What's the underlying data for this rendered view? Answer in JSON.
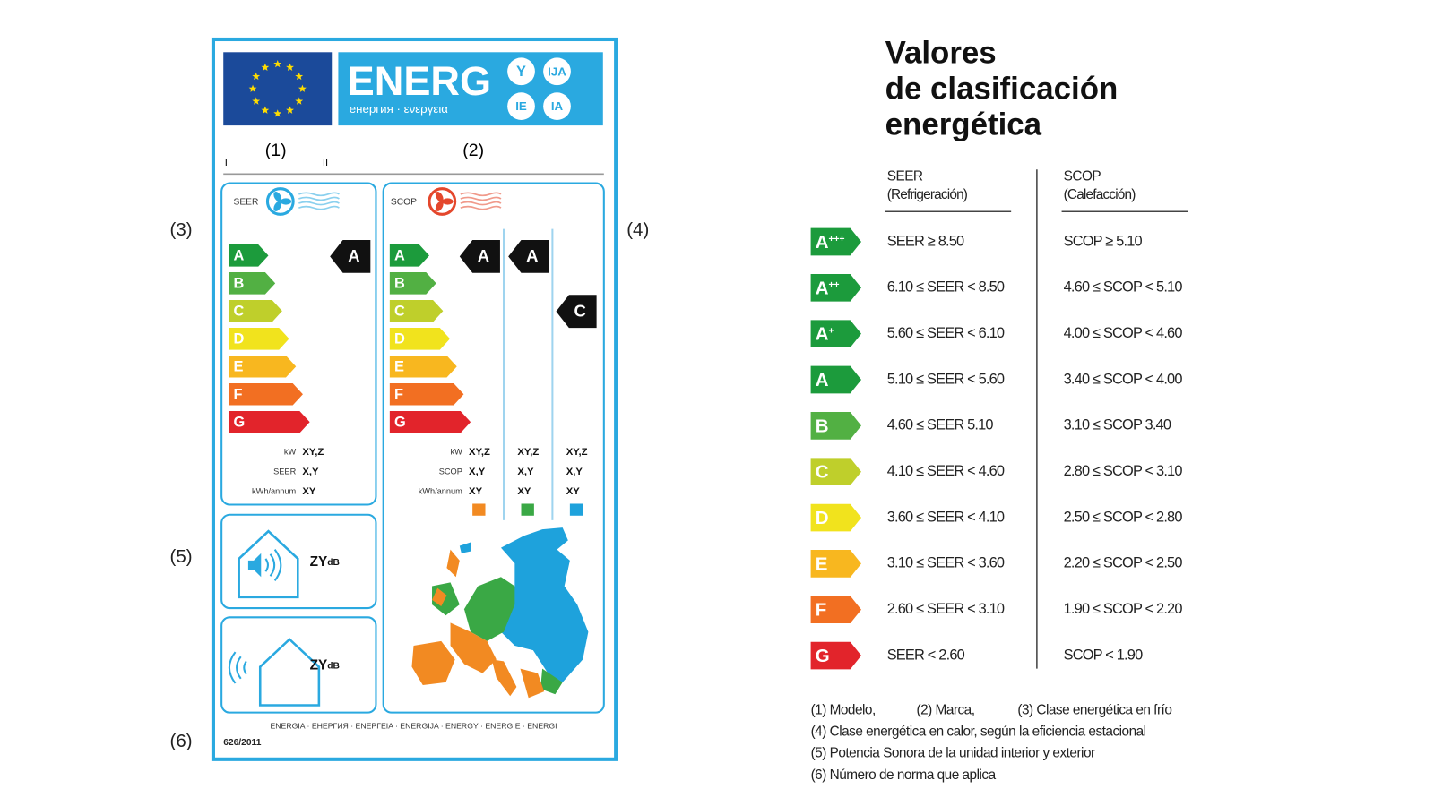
{
  "label": {
    "energy_word": "ENERG",
    "suffixes": [
      "Y",
      "IJA",
      "IE",
      "IA"
    ],
    "subtitle": "енергия · ενεργεια",
    "markers": [
      "(1)",
      "(2)"
    ],
    "roman": [
      "I",
      "II"
    ],
    "side_markers": [
      "(3)",
      "(4)",
      "(5)",
      "(6)"
    ],
    "cooling": {
      "title": "SEER",
      "classes": [
        "A",
        "B",
        "C",
        "D",
        "E",
        "F",
        "G"
      ],
      "rating": "A",
      "rows": [
        {
          "unit": "kW",
          "value": "XY,Z"
        },
        {
          "unit": "SEER",
          "value": "X,Y"
        },
        {
          "unit": "kWh/annum",
          "value": "XY"
        }
      ]
    },
    "heating": {
      "title": "SCOP",
      "classes": [
        "A",
        "B",
        "C",
        "D",
        "E",
        "F",
        "G"
      ],
      "ratings": [
        "A",
        "A",
        "C"
      ],
      "rows": [
        {
          "unit": "kW",
          "values": [
            "XY,Z",
            "XY,Z",
            "XY,Z"
          ]
        },
        {
          "unit": "SCOP",
          "values": [
            "X,Y",
            "X,Y",
            "X,Y"
          ]
        },
        {
          "unit": "kWh/annum",
          "values": [
            "XY",
            "XY",
            "XY"
          ]
        }
      ]
    },
    "noise": [
      {
        "value": "ZY",
        "unit": "dB"
      },
      {
        "value": "ZY",
        "unit": "dB"
      }
    ],
    "footer": "ENERGIA · ЕНЕРГИЯ · ΕΝΕΡΓΕΙΑ · ENERGIJA · ENERGY · ENERGIE · ENERGI",
    "regulation": "626/2011"
  },
  "table": {
    "title": [
      "Valores",
      "de clasificación",
      "energética"
    ],
    "columns": [
      {
        "name": "SEER",
        "note": "(Refrigeración)"
      },
      {
        "name": "SCOP",
        "note": "(Calefacción)"
      }
    ],
    "rows": [
      {
        "class": "A",
        "plus": "+++",
        "seer": "SEER ≥ 8.50",
        "scop": "SCOP ≥ 5.10"
      },
      {
        "class": "A",
        "plus": "++",
        "seer": "6.10 ≤ SEER < 8.50",
        "scop": "4.60 ≤ SCOP < 5.10"
      },
      {
        "class": "A",
        "plus": "+",
        "seer": "5.60 ≤ SEER < 6.10",
        "scop": "4.00 ≤ SCOP < 4.60"
      },
      {
        "class": "A",
        "seer": "5.10 ≤ SEER < 5.60",
        "scop": "3.40 ≤ SCOP < 4.00"
      },
      {
        "class": "B",
        "seer": "4.60 ≤ SEER 5.10",
        "scop": "3.10 ≤ SCOP 3.40"
      },
      {
        "class": "C",
        "seer": "4.10 ≤ SEER < 4.60",
        "scop": "2.80 ≤ SCOP < 3.10"
      },
      {
        "class": "D",
        "seer": "3.60 ≤ SEER < 4.10",
        "scop": "2.50 ≤ SCOP < 2.80"
      },
      {
        "class": "E",
        "seer": "3.10 ≤ SEER < 3.60",
        "scop": "2.20 ≤ SCOP < 2.50"
      },
      {
        "class": "F",
        "seer": "2.60 ≤ SEER < 3.10",
        "scop": "1.90 ≤ SCOP < 2.20"
      },
      {
        "class": "G",
        "seer": "SEER < 2.60",
        "scop": "SCOP < 1.90"
      }
    ],
    "footnotes": [
      [
        "(1) Modelo,",
        "(2) Marca,",
        "(3) Clase energética en frío"
      ],
      "(4) Clase energética en calor, según la eficiencia estacional",
      "(5) Potencia Sonora de la unidad interior y exterior",
      "(6) Número de norma que aplica"
    ]
  }
}
